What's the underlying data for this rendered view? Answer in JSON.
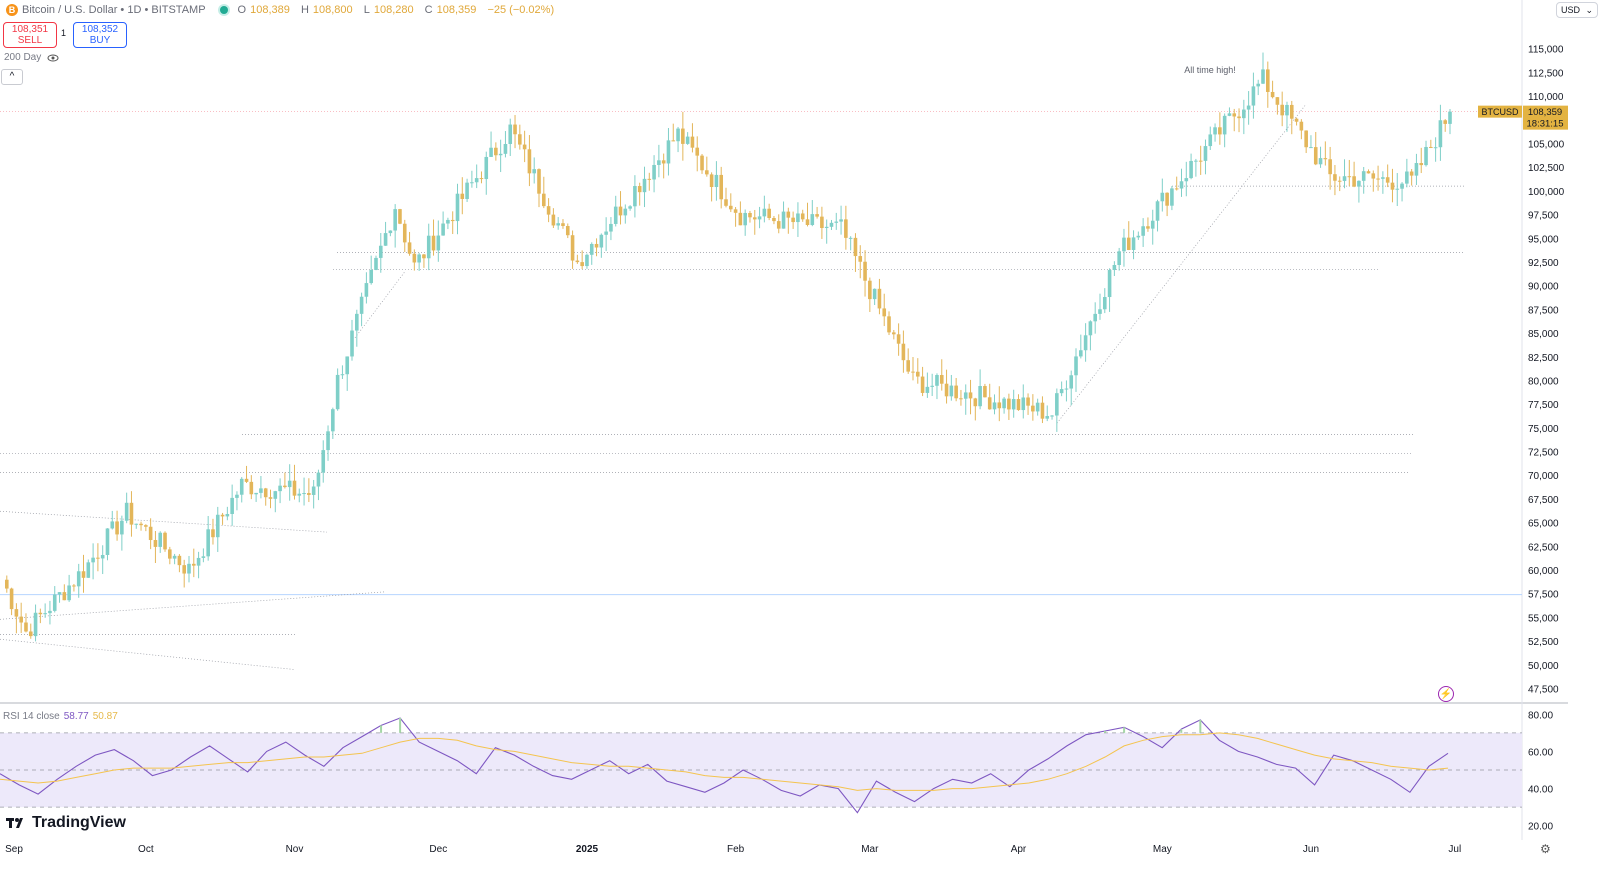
{
  "header": {
    "symbol_title": "Bitcoin / U.S. Dollar • 1D • BITSTAMP",
    "coin_glyph": "B",
    "open_label": "O",
    "open": "108,389",
    "high_label": "H",
    "high": "108,800",
    "low_label": "L",
    "low": "108,280",
    "close_label": "C",
    "close": "108,359",
    "change": "−25 (−0.02%)"
  },
  "trade": {
    "sell_price": "108,351",
    "sell_label": "SELL",
    "spread": "1",
    "buy_price": "108,352",
    "buy_label": "BUY"
  },
  "indicator_200": "200 Day",
  "collapse_glyph": "^",
  "currency": "USD",
  "price_tag": {
    "symbol": "BTCUSD",
    "price": "108,359",
    "countdown": "18:31:15"
  },
  "rsi_legend": {
    "name": "RSI 14 close",
    "rsi": "58.77",
    "ma": "50.87"
  },
  "branding": "TradingView",
  "icons": {
    "live": "live-dot-icon",
    "eye": "eye-icon",
    "flash": "flash-icon",
    "settings": "gear-icon",
    "dropdown": "chevron-down-icon"
  },
  "colors": {
    "up": "#7fcfc8",
    "down": "#e3b65a",
    "rsi_line": "#7e57c2",
    "rsi_ma": "#f4c44f",
    "rsi_band": "#ede9fa",
    "price_tag": "#e3b341"
  },
  "chart_data": [
    {
      "type": "candlestick",
      "title": "Bitcoin / U.S. Dollar",
      "interval": "1D",
      "y_axis_ticks": [
        115000,
        112500,
        110000,
        107500,
        105000,
        102500,
        100000,
        97500,
        95000,
        92500,
        90000,
        87500,
        85000,
        82500,
        80000,
        77500,
        75000,
        72500,
        70000,
        67500,
        65000,
        62500,
        60000,
        57500,
        55000,
        52500,
        50000,
        47500
      ],
      "ylim": [
        46500,
        117500
      ],
      "x_axis_labels": [
        "Sep",
        "Oct",
        "Nov",
        "Dec",
        "2025",
        "Feb",
        "Mar",
        "Apr",
        "May",
        "Jun",
        "Jul"
      ],
      "x_range": [
        "2024-09-01",
        "2025-06-30"
      ],
      "annotation": "All time high!",
      "key_points": [
        {
          "date": "2024-09-01",
          "price": 59000
        },
        {
          "date": "2024-09-06",
          "price": 53500
        },
        {
          "date": "2024-09-18",
          "price": 60000
        },
        {
          "date": "2024-09-27",
          "price": 66000
        },
        {
          "date": "2024-10-10",
          "price": 60000
        },
        {
          "date": "2024-10-21",
          "price": 69000
        },
        {
          "date": "2024-11-05",
          "price": 68000
        },
        {
          "date": "2024-11-10",
          "price": 80000
        },
        {
          "date": "2024-11-22",
          "price": 98500
        },
        {
          "date": "2024-11-26",
          "price": 92000
        },
        {
          "date": "2024-12-16",
          "price": 106500
        },
        {
          "date": "2024-12-30",
          "price": 92500
        },
        {
          "date": "2025-01-20",
          "price": 106000
        },
        {
          "date": "2025-02-02",
          "price": 97500
        },
        {
          "date": "2025-02-23",
          "price": 96000
        },
        {
          "date": "2025-03-10",
          "price": 80000
        },
        {
          "date": "2025-04-08",
          "price": 76500
        },
        {
          "date": "2025-04-22",
          "price": 93500
        },
        {
          "date": "2025-05-22",
          "price": 111700
        },
        {
          "date": "2025-06-05",
          "price": 101500
        },
        {
          "date": "2025-06-22",
          "price": 101000
        },
        {
          "date": "2025-06-30",
          "price": 108359
        }
      ]
    },
    {
      "type": "line",
      "title": "RSI 14 close",
      "y_axis_ticks": [
        80,
        60,
        40,
        20
      ],
      "ylim": [
        15,
        85
      ],
      "bands": [
        30,
        50,
        70
      ],
      "series": [
        {
          "name": "RSI",
          "values": [
            48,
            42,
            37,
            45,
            52,
            58,
            61,
            55,
            47,
            50,
            57,
            63,
            56,
            49,
            60,
            65,
            58,
            52,
            62,
            68,
            74,
            78,
            65,
            60,
            55,
            48,
            62,
            58,
            52,
            47,
            45,
            50,
            55,
            48,
            53,
            44,
            41,
            38,
            43,
            50,
            45,
            39,
            36,
            42,
            40,
            27,
            44,
            38,
            33,
            40,
            45,
            43,
            48,
            41,
            50,
            56,
            63,
            69,
            71,
            73,
            68,
            62,
            72,
            77,
            66,
            60,
            57,
            53,
            51,
            42,
            58,
            55,
            50,
            45,
            38,
            52,
            59
          ]
        },
        {
          "name": "MA",
          "values": [
            45,
            44,
            43,
            44,
            46,
            48,
            50,
            51,
            51,
            51,
            52,
            53,
            54,
            54,
            55,
            56,
            57,
            57,
            58,
            59,
            62,
            65,
            67,
            67,
            66,
            63,
            61,
            60,
            58,
            56,
            54,
            53,
            52,
            52,
            51,
            50,
            49,
            47,
            46,
            46,
            45,
            44,
            43,
            42,
            41,
            39,
            40,
            39,
            39,
            39,
            40,
            40,
            41,
            42,
            43,
            45,
            48,
            52,
            57,
            63,
            66,
            68,
            69,
            69,
            70,
            69,
            67,
            64,
            61,
            58,
            56,
            55,
            54,
            52,
            51,
            50,
            51
          ]
        }
      ]
    }
  ]
}
